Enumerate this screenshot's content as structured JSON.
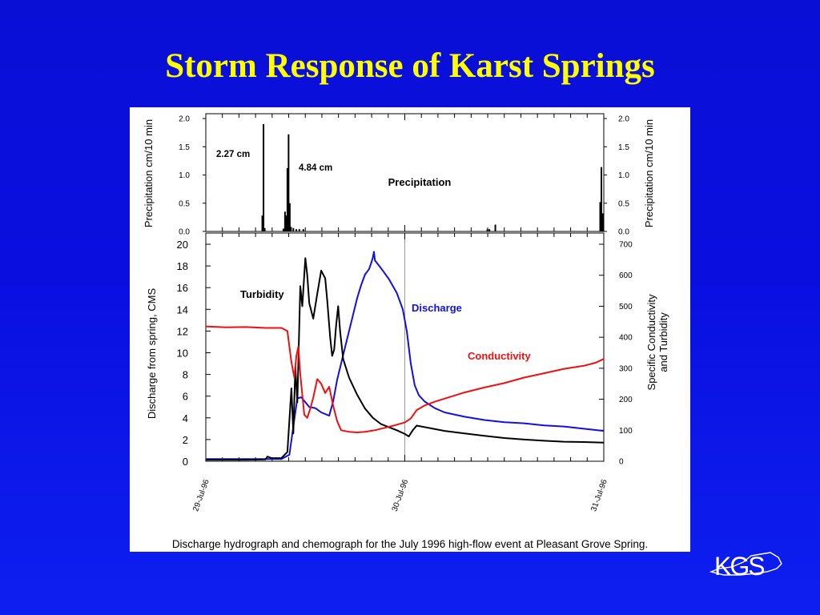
{
  "slide": {
    "title": "Storm Response of Karst Springs",
    "caption": "Discharge hydrograph and chemograph for the July 1996 high-flow event at Pleasant Grove Spring.",
    "logo_text": "KGS",
    "background_color": "#0a0fe0",
    "title_color": "#ffff00"
  },
  "chart_data": [
    {
      "type": "bar",
      "panel": "top",
      "title": "Precipitation",
      "ylabel": "Precipitation cm/10 min",
      "ylabel_right": "Precipitation cm/10 min",
      "ylim": [
        0,
        2.0
      ],
      "yticks": [
        "0.0",
        "0.5",
        "1.0",
        "1.5",
        "2.0"
      ],
      "xlim": [
        0,
        2
      ],
      "x_unit": "days from 29-Jul-96 00:00",
      "annotations": [
        {
          "text": "2.27 cm",
          "at": [
            0.05,
            1.45
          ]
        },
        {
          "text": "4.84 cm",
          "at": [
            0.47,
            1.08
          ]
        }
      ],
      "bars": [
        {
          "x": 0.284,
          "value": 0.28
        },
        {
          "x": 0.29,
          "value": 1.9
        },
        {
          "x": 0.296,
          "value": 0.06
        },
        {
          "x": 0.39,
          "value": 0.05
        },
        {
          "x": 0.398,
          "value": 0.35
        },
        {
          "x": 0.404,
          "value": 0.28
        },
        {
          "x": 0.41,
          "value": 1.12
        },
        {
          "x": 0.416,
          "value": 1.72
        },
        {
          "x": 0.422,
          "value": 0.5
        },
        {
          "x": 0.428,
          "value": 0.08
        },
        {
          "x": 0.44,
          "value": 0.06
        },
        {
          "x": 0.455,
          "value": 0.04
        },
        {
          "x": 0.47,
          "value": 0.04
        },
        {
          "x": 0.49,
          "value": 0.04
        },
        {
          "x": 1.415,
          "value": 0.04
        },
        {
          "x": 1.425,
          "value": 0.04
        },
        {
          "x": 1.455,
          "value": 0.12
        },
        {
          "x": 1.982,
          "value": 0.52
        },
        {
          "x": 1.988,
          "value": 1.14
        },
        {
          "x": 1.994,
          "value": 0.32
        }
      ],
      "color": "#000000"
    },
    {
      "type": "line",
      "panel": "bottom",
      "ylabel": "Discharge from spring, CMS",
      "ylim": [
        0,
        20
      ],
      "yticks": [
        "0",
        "2",
        "4",
        "6",
        "8",
        "10",
        "12",
        "14",
        "16",
        "18",
        "20"
      ],
      "ylabel_right": "Specific Conductivity and Turbidity",
      "ylim_right": [
        0,
        700
      ],
      "yticks_right": [
        "0",
        "100",
        "200",
        "300",
        "400",
        "500",
        "600",
        "700"
      ],
      "xlim": [
        0,
        2
      ],
      "x_unit": "days from 29-Jul-96 00:00",
      "xticks": [
        {
          "x": 0,
          "label": "29-Jul-96"
        },
        {
          "x": 1,
          "label": "30-Jul-96"
        },
        {
          "x": 2,
          "label": "31-Jul-96"
        }
      ],
      "series": [
        {
          "name": "Discharge",
          "axis": "left",
          "color": "#1010e0",
          "points": [
            [
              0,
              0.2
            ],
            [
              0.2,
              0.2
            ],
            [
              0.38,
              0.2
            ],
            [
              0.42,
              0.6
            ],
            [
              0.44,
              3.2
            ],
            [
              0.46,
              5.8
            ],
            [
              0.48,
              5.9
            ],
            [
              0.52,
              5.0
            ],
            [
              0.55,
              4.9
            ],
            [
              0.58,
              4.5
            ],
            [
              0.62,
              4.2
            ],
            [
              0.64,
              5.5
            ],
            [
              0.66,
              7.5
            ],
            [
              0.7,
              10.5
            ],
            [
              0.74,
              13.5
            ],
            [
              0.76,
              15.0
            ],
            [
              0.78,
              16.2
            ],
            [
              0.8,
              17.2
            ],
            [
              0.82,
              17.7
            ],
            [
              0.83,
              18.2
            ],
            [
              0.84,
              18.8
            ],
            [
              0.845,
              19.3
            ],
            [
              0.85,
              18.5
            ],
            [
              0.88,
              17.8
            ],
            [
              0.92,
              16.8
            ],
            [
              0.96,
              15.5
            ],
            [
              0.99,
              14.0
            ],
            [
              1.01,
              12.0
            ],
            [
              1.03,
              9.0
            ],
            [
              1.05,
              7.0
            ],
            [
              1.07,
              6.1
            ],
            [
              1.1,
              5.5
            ],
            [
              1.15,
              4.9
            ],
            [
              1.2,
              4.5
            ],
            [
              1.3,
              4.1
            ],
            [
              1.4,
              3.8
            ],
            [
              1.5,
              3.6
            ],
            [
              1.6,
              3.5
            ],
            [
              1.7,
              3.3
            ],
            [
              1.8,
              3.2
            ],
            [
              1.9,
              3.0
            ],
            [
              2.0,
              2.8
            ]
          ]
        },
        {
          "name": "Turbidity",
          "axis": "right",
          "color": "#000000",
          "points": [
            [
              0,
              5
            ],
            [
              0.2,
              5
            ],
            [
              0.3,
              6
            ],
            [
              0.31,
              15
            ],
            [
              0.33,
              10
            ],
            [
              0.38,
              10
            ],
            [
              0.41,
              30
            ],
            [
              0.43,
              235
            ],
            [
              0.44,
              90
            ],
            [
              0.45,
              305
            ],
            [
              0.46,
              190
            ],
            [
              0.475,
              565
            ],
            [
              0.485,
              500
            ],
            [
              0.5,
              655
            ],
            [
              0.51,
              600
            ],
            [
              0.52,
              510
            ],
            [
              0.54,
              460
            ],
            [
              0.56,
              540
            ],
            [
              0.58,
              615
            ],
            [
              0.6,
              590
            ],
            [
              0.61,
              520
            ],
            [
              0.625,
              400
            ],
            [
              0.635,
              340
            ],
            [
              0.645,
              360
            ],
            [
              0.655,
              440
            ],
            [
              0.665,
              500
            ],
            [
              0.675,
              420
            ],
            [
              0.69,
              330
            ],
            [
              0.72,
              270
            ],
            [
              0.76,
              215
            ],
            [
              0.8,
              170
            ],
            [
              0.84,
              140
            ],
            [
              0.88,
              120
            ],
            [
              0.92,
              110
            ],
            [
              0.96,
              100
            ],
            [
              1.0,
              88
            ],
            [
              1.02,
              80
            ],
            [
              1.04,
              100
            ],
            [
              1.06,
              115
            ],
            [
              1.1,
              110
            ],
            [
              1.2,
              98
            ],
            [
              1.3,
              90
            ],
            [
              1.4,
              82
            ],
            [
              1.5,
              75
            ],
            [
              1.6,
              70
            ],
            [
              1.7,
              66
            ],
            [
              1.8,
              63
            ],
            [
              1.9,
              62
            ],
            [
              2.0,
              60
            ]
          ]
        },
        {
          "name": "Conductivity",
          "axis": "right",
          "color": "#ee1010",
          "points": [
            [
              0,
              435
            ],
            [
              0.1,
              432
            ],
            [
              0.2,
              433
            ],
            [
              0.3,
              430
            ],
            [
              0.38,
              430
            ],
            [
              0.41,
              420
            ],
            [
              0.43,
              320
            ],
            [
              0.445,
              270
            ],
            [
              0.455,
              340
            ],
            [
              0.465,
              370
            ],
            [
              0.475,
              280
            ],
            [
              0.485,
              215
            ],
            [
              0.495,
              150
            ],
            [
              0.51,
              140
            ],
            [
              0.525,
              170
            ],
            [
              0.54,
              205
            ],
            [
              0.56,
              265
            ],
            [
              0.58,
              250
            ],
            [
              0.6,
              220
            ],
            [
              0.62,
              240
            ],
            [
              0.64,
              180
            ],
            [
              0.66,
              130
            ],
            [
              0.68,
              100
            ],
            [
              0.72,
              95
            ],
            [
              0.76,
              93
            ],
            [
              0.8,
              95
            ],
            [
              0.85,
              100
            ],
            [
              0.9,
              108
            ],
            [
              0.95,
              116
            ],
            [
              1.0,
              125
            ],
            [
              1.03,
              138
            ],
            [
              1.06,
              165
            ],
            [
              1.1,
              180
            ],
            [
              1.15,
              192
            ],
            [
              1.2,
              202
            ],
            [
              1.3,
              222
            ],
            [
              1.4,
              238
            ],
            [
              1.5,
              252
            ],
            [
              1.6,
              270
            ],
            [
              1.7,
              284
            ],
            [
              1.8,
              298
            ],
            [
              1.9,
              308
            ],
            [
              1.96,
              318
            ],
            [
              2.0,
              330
            ]
          ]
        }
      ],
      "annotations": [
        {
          "text": "Turbidity",
          "color": "#000000"
        },
        {
          "text": "Discharge",
          "color": "#1010e0"
        },
        {
          "text": "Conductivity",
          "color": "#ee1010"
        }
      ]
    }
  ]
}
